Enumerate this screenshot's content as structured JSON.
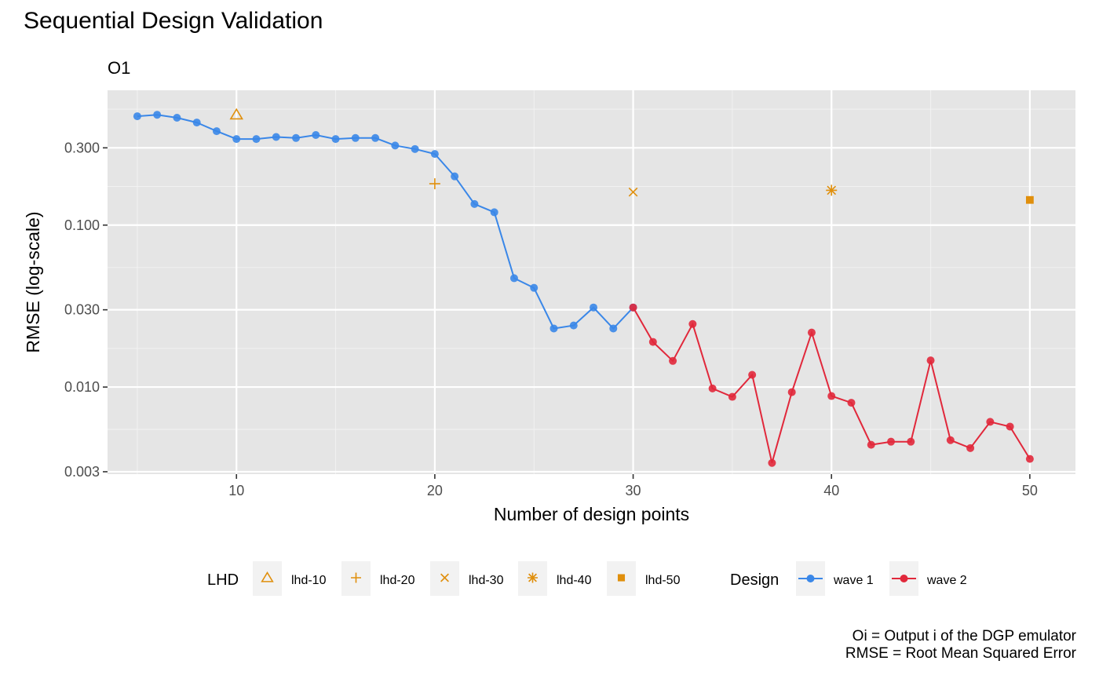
{
  "title": "Sequential Design Validation",
  "facet_label": "O1",
  "caption": [
    "Oi = Output i of the DGP emulator",
    "RMSE = Root Mean Squared Error"
  ],
  "chart_data": {
    "type": "line",
    "title": "Sequential Design Validation",
    "subtitle": "O1",
    "xlabel": "Number of design points",
    "ylabel": "RMSE (log-scale)",
    "y_scale": "log10",
    "xlim": [
      3.5,
      52.3
    ],
    "ylim": [
      0.0029,
      0.68
    ],
    "x_ticks": [
      10,
      20,
      30,
      40,
      50
    ],
    "y_ticks": [
      0.003,
      0.01,
      0.03,
      0.1,
      0.3
    ],
    "y_tick_labels": [
      "0.003",
      "0.010",
      "0.030",
      "0.100",
      "0.300"
    ],
    "grid": true,
    "legend_position": "bottom",
    "series": [
      {
        "name": "wave 1",
        "color": "#3a87e8",
        "x": [
          5,
          6,
          7,
          8,
          9,
          10,
          11,
          12,
          13,
          14,
          15,
          16,
          17,
          18,
          19,
          20,
          21,
          22,
          23,
          24,
          25,
          26,
          27,
          28,
          29,
          30
        ],
        "y": [
          0.47,
          0.48,
          0.46,
          0.43,
          0.38,
          0.34,
          0.34,
          0.35,
          0.345,
          0.36,
          0.34,
          0.345,
          0.345,
          0.31,
          0.295,
          0.275,
          0.2,
          0.135,
          0.12,
          0.047,
          0.041,
          0.023,
          0.024,
          0.031,
          0.023,
          0.031
        ]
      },
      {
        "name": "wave 2",
        "color": "#e1283b",
        "x": [
          30,
          31,
          32,
          33,
          34,
          35,
          36,
          37,
          38,
          39,
          40,
          41,
          42,
          43,
          44,
          45,
          46,
          47,
          48,
          49,
          50
        ],
        "y": [
          0.031,
          0.019,
          0.0145,
          0.0245,
          0.0098,
          0.0087,
          0.0119,
          0.0034,
          0.0093,
          0.0217,
          0.0088,
          0.008,
          0.0044,
          0.0046,
          0.0046,
          0.0146,
          0.0047,
          0.0042,
          0.0061,
          0.0057,
          0.0036
        ]
      }
    ],
    "lhd_points": [
      {
        "name": "lhd-10",
        "x": 10,
        "y": 0.48,
        "shape": "triangle"
      },
      {
        "name": "lhd-20",
        "x": 20,
        "y": 0.18,
        "shape": "plus"
      },
      {
        "name": "lhd-30",
        "x": 30,
        "y": 0.16,
        "shape": "cross"
      },
      {
        "name": "lhd-40",
        "x": 40,
        "y": 0.164,
        "shape": "asterisk"
      },
      {
        "name": "lhd-50",
        "x": 50,
        "y": 0.143,
        "shape": "square"
      }
    ],
    "lhd_color": "#e08f0c",
    "legends": [
      {
        "title": "LHD",
        "items": [
          "lhd-10",
          "lhd-20",
          "lhd-30",
          "lhd-40",
          "lhd-50"
        ]
      },
      {
        "title": "Design",
        "items": [
          "wave 1",
          "wave 2"
        ]
      }
    ]
  }
}
